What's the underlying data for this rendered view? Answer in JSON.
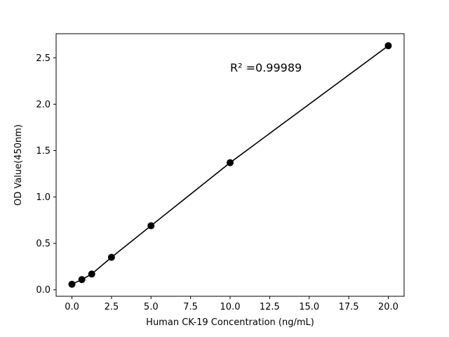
{
  "chart_data": {
    "type": "scatter",
    "title": "",
    "xlabel": "Human CK-19 Concentration (ng/mL)",
    "ylabel": "OD Value(450nm)",
    "annotation": {
      "text": "R² =0.99989",
      "x": 10.0,
      "y": 2.35
    },
    "x": [
      0,
      0.625,
      1.25,
      2.5,
      5,
      10,
      20
    ],
    "y": [
      0.06,
      0.11,
      0.17,
      0.35,
      0.69,
      1.37,
      2.63
    ],
    "xlim": [
      -1,
      21
    ],
    "ylim": [
      -0.07,
      2.76
    ],
    "xticks": [
      0,
      2.5,
      5,
      7.5,
      10,
      12.5,
      15,
      17.5,
      20
    ],
    "xtick_labels": [
      "0.0",
      "2.5",
      "5.0",
      "7.5",
      "10.0",
      "12.5",
      "15.0",
      "17.5",
      "20.0"
    ],
    "yticks": [
      0,
      0.5,
      1,
      1.5,
      2,
      2.5
    ],
    "ytick_labels": [
      "0.0",
      "0.5",
      "1.0",
      "1.5",
      "2.0",
      "2.5"
    ],
    "line_color": "#000000",
    "marker_color": "#000000",
    "axis_color": "#000000",
    "background_color": "#ffffff",
    "grid": false,
    "legend": null
  }
}
